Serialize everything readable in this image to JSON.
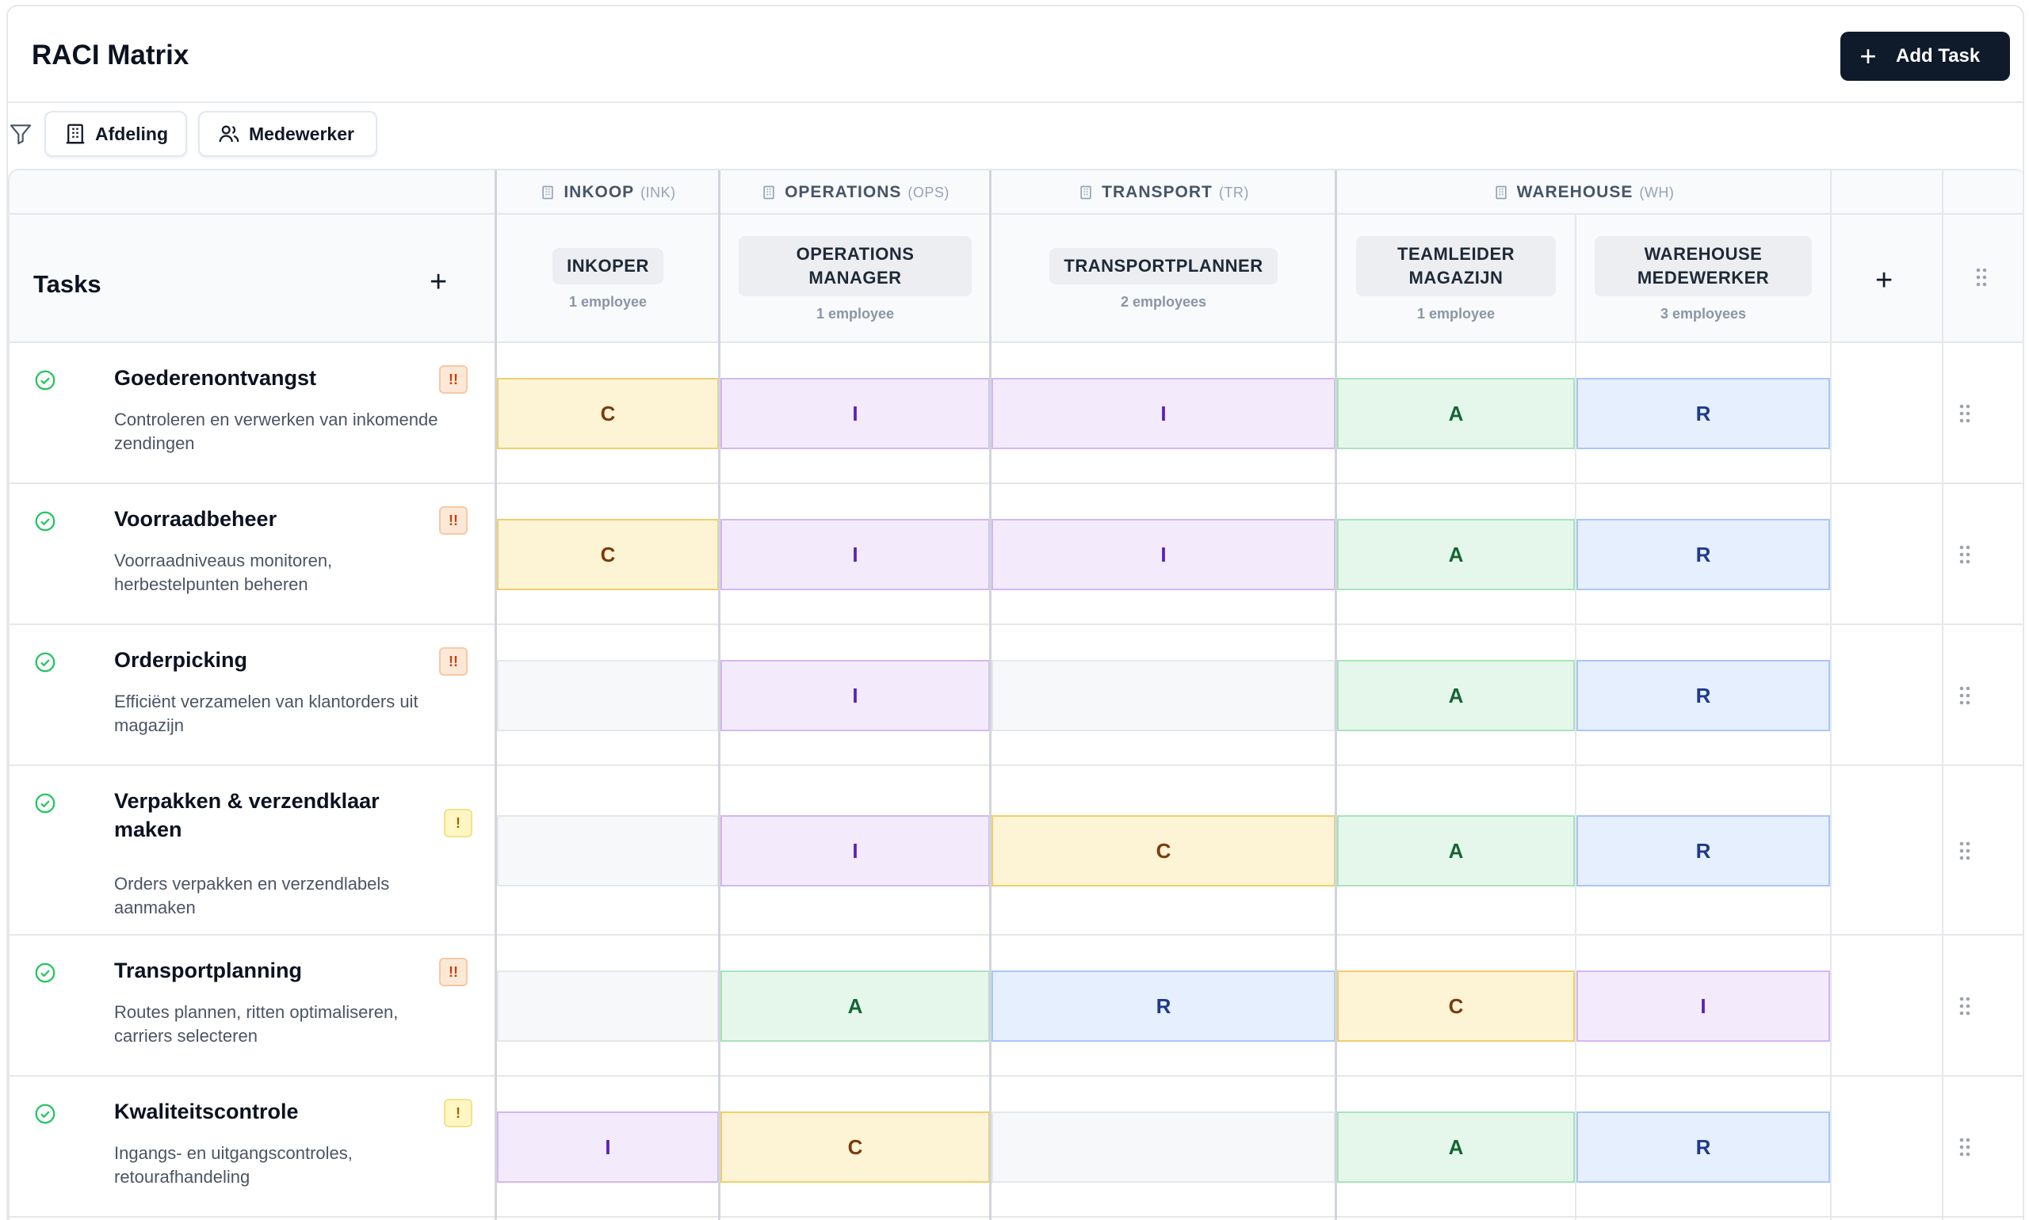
{
  "app": {
    "title": "RACI Matrix",
    "add_task_label": "Add Task"
  },
  "filters": [
    {
      "label": "Afdeling",
      "icon": "building-icon"
    },
    {
      "label": "Medewerker",
      "icon": "users-icon"
    }
  ],
  "tasks_header": "Tasks",
  "departments": [
    {
      "name": "INKOOP",
      "code": "(INK)"
    },
    {
      "name": "OPERATIONS",
      "code": "(OPS)"
    },
    {
      "name": "TRANSPORT",
      "code": "(TR)"
    },
    {
      "name": "WAREHOUSE",
      "code": "(WH)"
    }
  ],
  "roles": [
    {
      "name": "INKOPER",
      "count": "1 employee"
    },
    {
      "name": "OPERATIONS MANAGER",
      "count": "1 employee"
    },
    {
      "name": "TRANSPORTPLANNER",
      "count": "2 employees"
    },
    {
      "name": "TEAMLEIDER MAGAZIJN",
      "count": "1 employee"
    },
    {
      "name": "WAREHOUSE MEDEWERKER",
      "count": "3 employees"
    }
  ],
  "tasks": [
    {
      "title": "Goederenontvangst",
      "description": "Controleren en verwerken van inkomende zendingen",
      "priority": "high",
      "priority_label": "!!",
      "status": "done",
      "assignments": [
        "C",
        "I",
        "I",
        "A",
        "R"
      ]
    },
    {
      "title": "Voorraadbeheer",
      "description": "Voorraadniveaus monitoren, herbestelpunten beheren",
      "priority": "high",
      "priority_label": "!!",
      "status": "done",
      "assignments": [
        "C",
        "I",
        "I",
        "A",
        "R"
      ]
    },
    {
      "title": "Orderpicking",
      "description": "Efficiënt verzamelen van klantorders uit magazijn",
      "priority": "high",
      "priority_label": "!!",
      "status": "done",
      "assignments": [
        "",
        "I",
        "",
        "A",
        "R"
      ]
    },
    {
      "title": "Verpakken & verzendklaar maken",
      "description": "Orders verpakken en verzendlabels aanmaken",
      "priority": "medium",
      "priority_label": "!",
      "status": "done",
      "assignments": [
        "",
        "I",
        "C",
        "A",
        "R"
      ]
    },
    {
      "title": "Transportplanning",
      "description": "Routes plannen, ritten optimaliseren, carriers selecteren",
      "priority": "high",
      "priority_label": "!!",
      "status": "done",
      "assignments": [
        "",
        "A",
        "R",
        "C",
        "I"
      ]
    },
    {
      "title": "Kwaliteitscontrole",
      "description": "Ingangs- en uitgangscontroles, retourafhandeling",
      "priority": "medium",
      "priority_label": "!",
      "status": "done",
      "assignments": [
        "I",
        "C",
        "",
        "A",
        "R"
      ]
    }
  ],
  "colors": {
    "primary_button": "#0f1a2b",
    "R": "#e6effe",
    "A": "#e5f7eb",
    "C": "#fdf4d6",
    "I": "#f3ebfc",
    "check": "#22c55e"
  }
}
